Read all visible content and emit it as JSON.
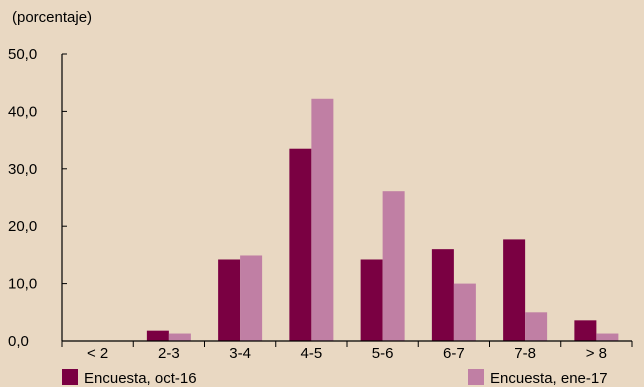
{
  "colors": {
    "background": "#E9D8C2",
    "axis": "#000000",
    "series_oct": "#7A0042",
    "series_ene": "#C07FA4"
  },
  "chart_data": {
    "type": "bar",
    "title": "",
    "xlabel": "",
    "ylabel": "(porcentaje)",
    "ylim": [
      0,
      50
    ],
    "yticks": [
      "0,0",
      "10,0",
      "20,0",
      "30,0",
      "40,0",
      "50,0"
    ],
    "grid": false,
    "legend_position": "bottom",
    "categories": [
      "< 2",
      "2-3",
      "3-4",
      "4-5",
      "5-6",
      "6-7",
      "7-8",
      "> 8"
    ],
    "series": [
      {
        "name": "Encuesta, oct-16",
        "color": "#7A0042",
        "values": [
          0,
          1.8,
          14.2,
          33.5,
          14.2,
          16.0,
          17.7,
          3.6
        ]
      },
      {
        "name": "Encuesta, ene-17",
        "color": "#C07FA4",
        "values": [
          0,
          1.3,
          14.9,
          42.2,
          26.1,
          10.0,
          5.0,
          1.3
        ]
      }
    ]
  }
}
